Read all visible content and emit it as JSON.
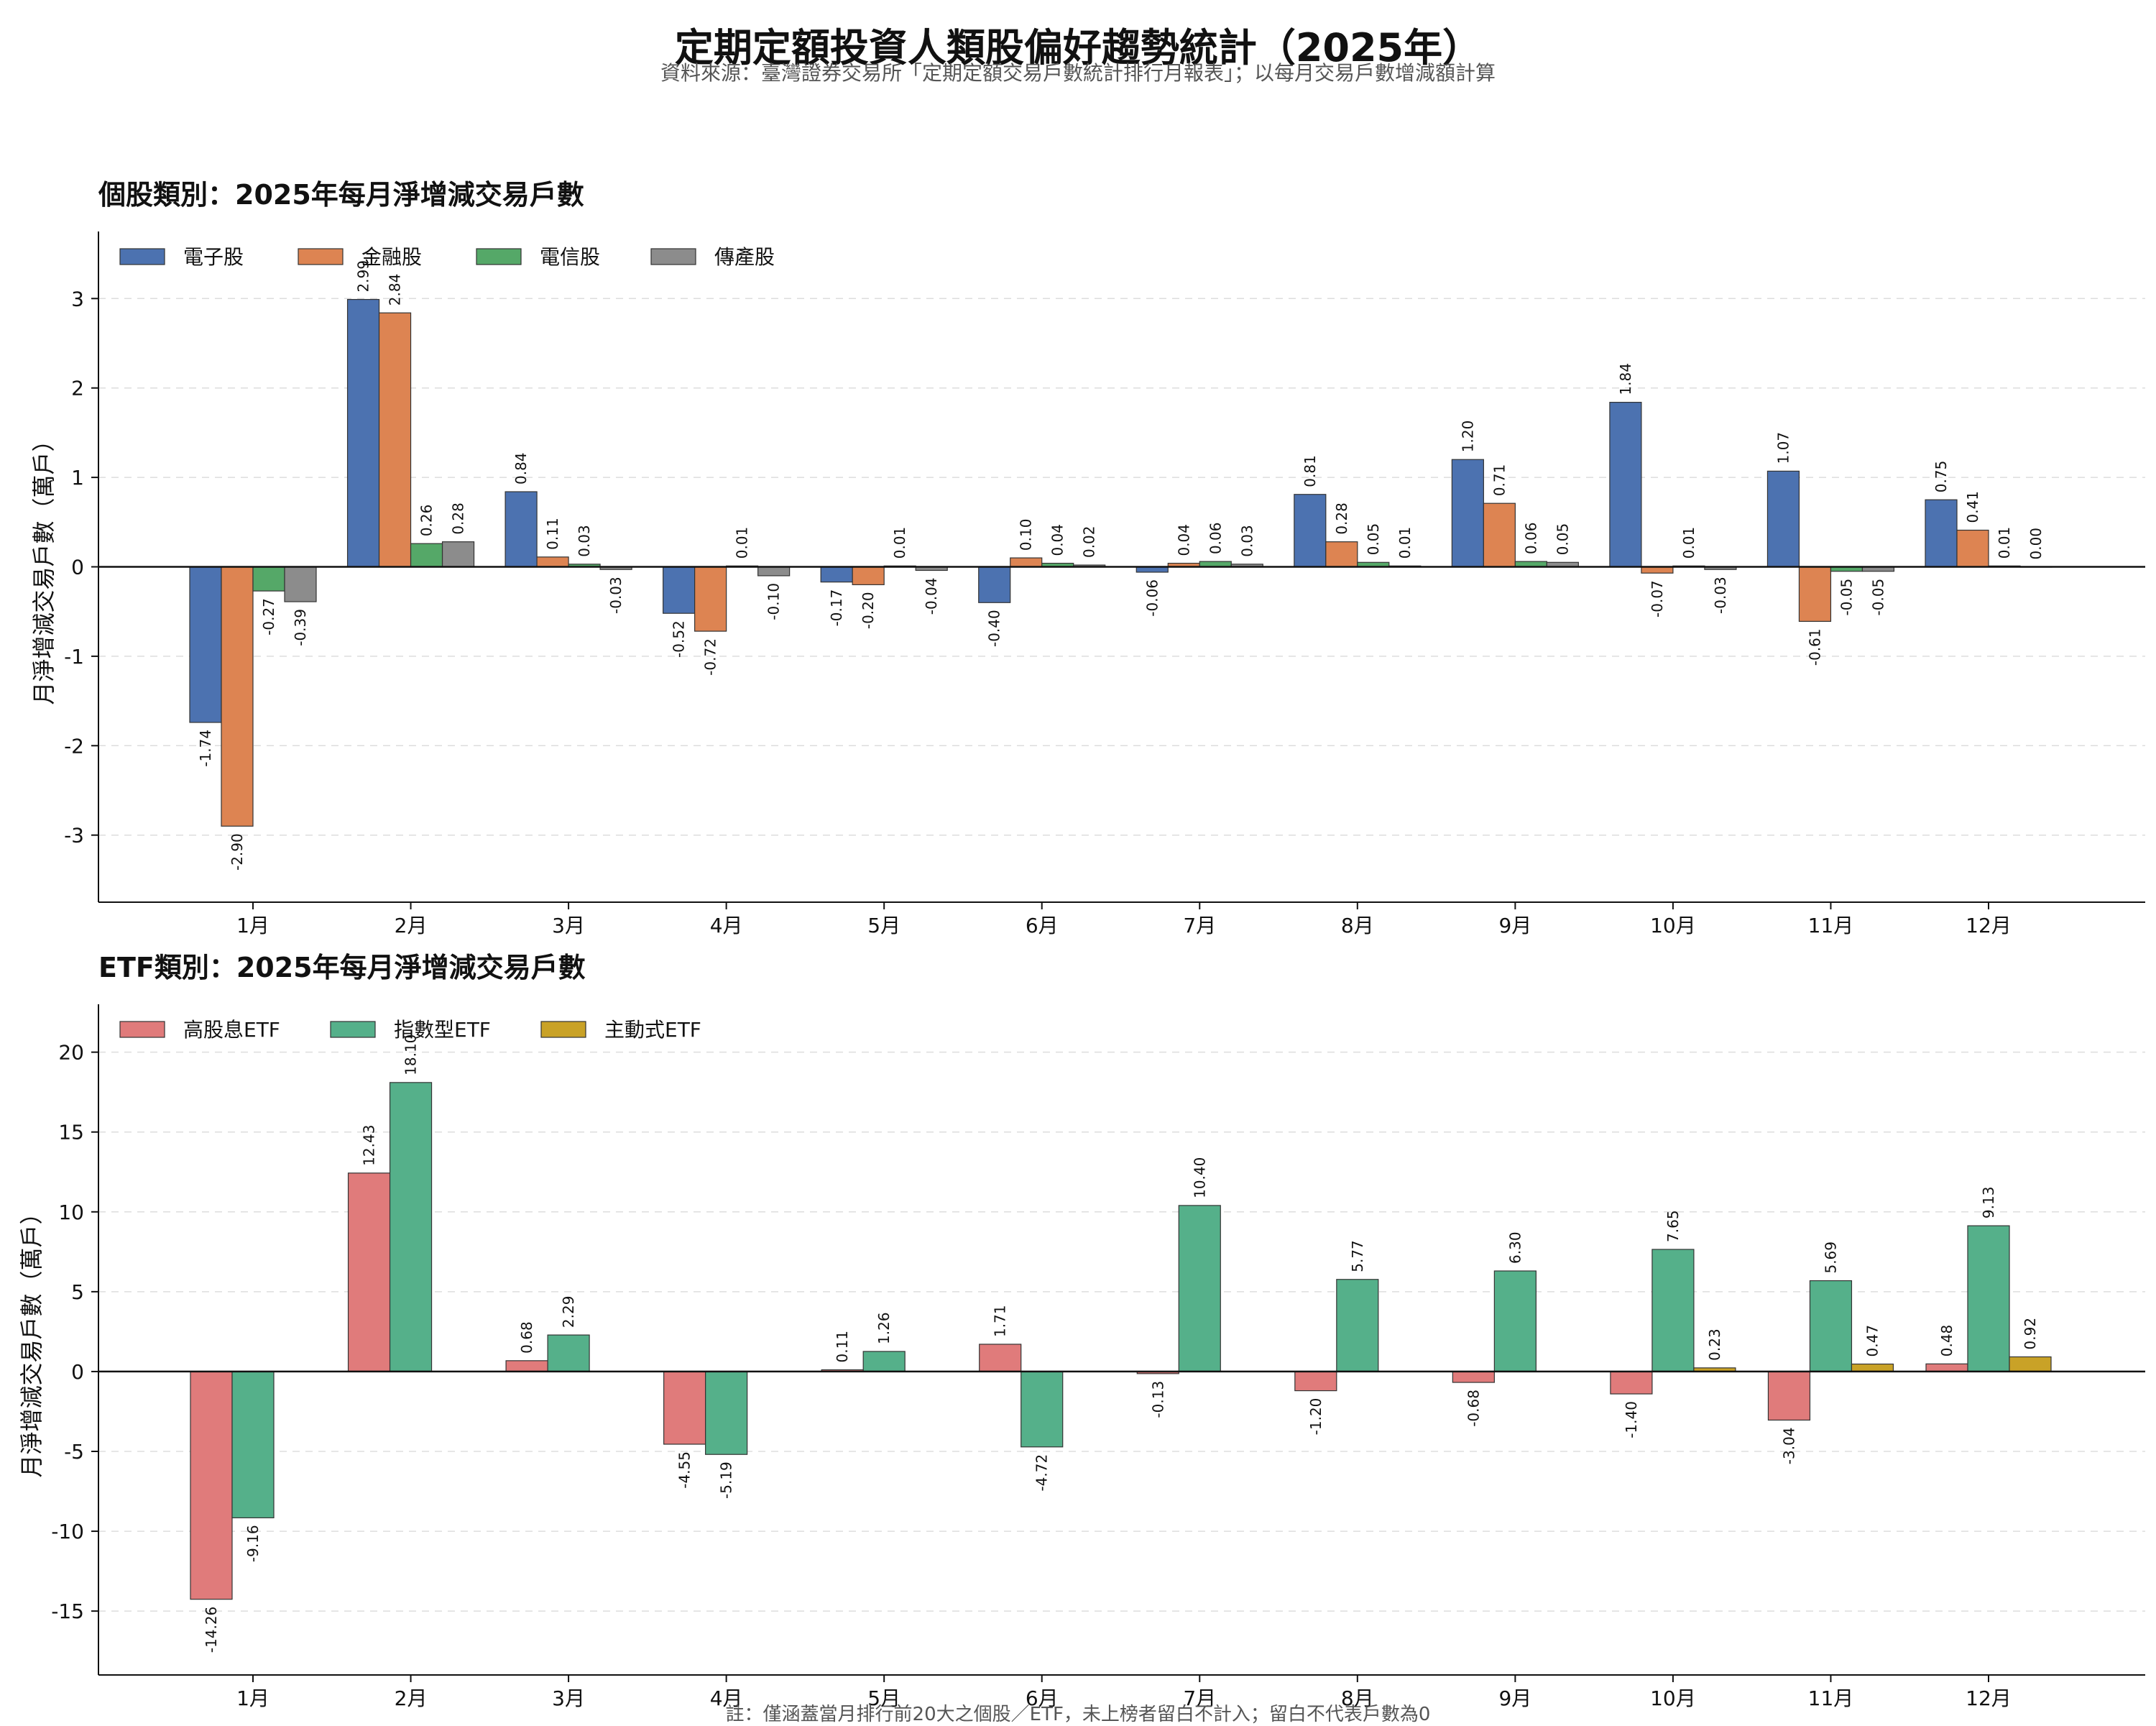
{
  "title": "定期定額投資人類股偏好趨勢統計（2025年）",
  "subtitle": "資料來源：臺灣證券交易所「定期定額交易戶數統計排行月報表」；以每月交易戶數增減額計算",
  "footnote": "註：僅涵蓋當月排行前20大之個股／ETF，未上榜者留白不計入；留白不代表戶數為0",
  "chart_data": [
    {
      "type": "bar",
      "title": "個股類別：2025年每月淨增減交易戶數",
      "ylabel": "月淨增減交易戶數（萬戶）",
      "xlabel": "",
      "categories": [
        "1月",
        "2月",
        "3月",
        "4月",
        "5月",
        "6月",
        "7月",
        "8月",
        "9月",
        "10月",
        "11月",
        "12月"
      ],
      "ylim": [
        -3.75,
        3.75
      ],
      "yticks": [
        -3,
        -2,
        -1,
        0,
        1,
        2,
        3
      ],
      "grid": true,
      "legend_position": "top-left",
      "series": [
        {
          "name": "電子股",
          "color": "#4c72b0",
          "values": [
            -1.74,
            2.99,
            0.84,
            -0.52,
            -0.17,
            -0.4,
            -0.06,
            0.81,
            1.2,
            1.84,
            1.07,
            0.75
          ]
        },
        {
          "name": "金融股",
          "color": "#dd8452",
          "values": [
            -2.9,
            2.84,
            0.11,
            -0.72,
            -0.2,
            0.1,
            0.04,
            0.28,
            0.71,
            -0.07,
            -0.61,
            0.41
          ]
        },
        {
          "name": "電信股",
          "color": "#55a868",
          "values": [
            -0.27,
            0.26,
            0.03,
            0.01,
            0.01,
            0.04,
            0.06,
            0.05,
            0.06,
            0.01,
            -0.05,
            0.01
          ]
        },
        {
          "name": "傳產股",
          "color": "#8c8c8c",
          "values": [
            -0.39,
            0.28,
            -0.03,
            -0.1,
            -0.04,
            0.02,
            0.03,
            0.01,
            0.05,
            -0.03,
            -0.05,
            0.0
          ]
        }
      ]
    },
    {
      "type": "bar",
      "title": "ETF類別：2025年每月淨增減交易戶數",
      "ylabel": "月淨增減交易戶數（萬戶）",
      "xlabel": "",
      "categories": [
        "1月",
        "2月",
        "3月",
        "4月",
        "5月",
        "6月",
        "7月",
        "8月",
        "9月",
        "10月",
        "11月",
        "12月"
      ],
      "ylim": [
        -19,
        23
      ],
      "yticks": [
        -15,
        -10,
        -5,
        0,
        5,
        10,
        15,
        20
      ],
      "grid": true,
      "legend_position": "top-left",
      "series": [
        {
          "name": "高股息ETF",
          "color": "#e07b7b",
          "values": [
            -14.26,
            12.43,
            0.68,
            -4.55,
            0.11,
            1.71,
            -0.13,
            -1.2,
            -0.68,
            -1.4,
            -3.04,
            0.48
          ]
        },
        {
          "name": "指數型ETF",
          "color": "#55b08a",
          "values": [
            -9.16,
            18.1,
            2.29,
            -5.19,
            1.26,
            -4.72,
            10.4,
            5.77,
            6.3,
            7.65,
            5.69,
            9.13
          ]
        },
        {
          "name": "主動式ETF",
          "color": "#c9a227",
          "values": [
            null,
            null,
            null,
            null,
            null,
            null,
            null,
            null,
            null,
            0.23,
            0.47,
            0.92
          ]
        }
      ]
    }
  ]
}
